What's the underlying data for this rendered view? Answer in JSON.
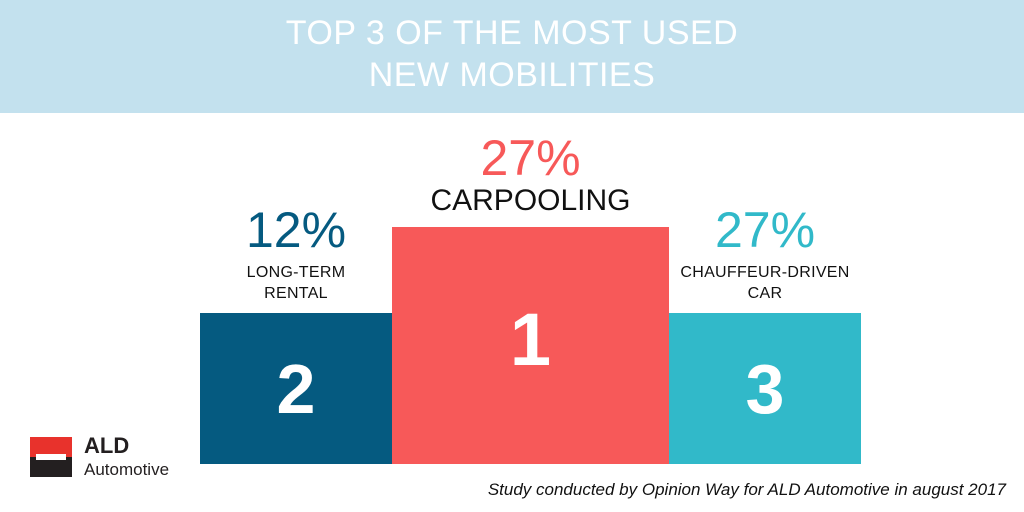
{
  "title_lines": [
    "TOP 3 OF THE MOST USED",
    "NEW MOBILITIES"
  ],
  "chart_data": {
    "type": "bar",
    "items": [
      {
        "rank": "2",
        "value_label": "12%",
        "value": 12,
        "label_lines": [
          "LONG-TERM",
          "RENTAL"
        ],
        "color": "#055a80"
      },
      {
        "rank": "1",
        "value_label": "27%",
        "value": 27,
        "label_lines": [
          "CARPOOLING"
        ],
        "color": "#f75959"
      },
      {
        "rank": "3",
        "value_label": "27%",
        "value": 27,
        "label_lines": [
          "CHAUFFEUR-DRIVEN",
          "CAR"
        ],
        "color": "#31b9c9"
      }
    ]
  },
  "logo": {
    "name": "ALD",
    "sub": "Automotive"
  },
  "source": "Study conducted by Opinion Way for ALD Automotive in august 2017",
  "colors": {
    "banner": "#c3e1ee",
    "dark_blue": "#055a80",
    "coral": "#f75959",
    "teal": "#31b9c9"
  }
}
